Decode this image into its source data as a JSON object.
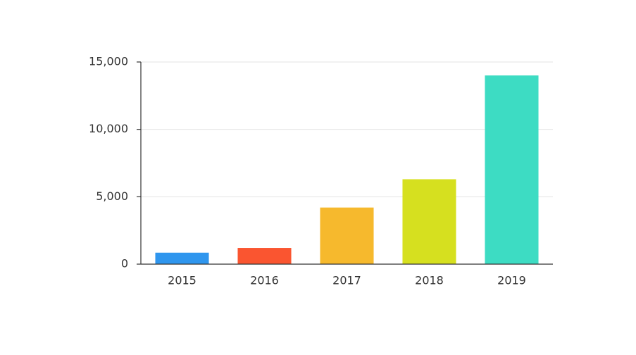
{
  "chart_data": {
    "type": "bar",
    "categories": [
      "2015",
      "2016",
      "2017",
      "2018",
      "2019"
    ],
    "values": [
      850,
      1200,
      4200,
      6300,
      14000
    ],
    "colors": [
      "#2f96ee",
      "#fa5530",
      "#f6b92d",
      "#d6e01f",
      "#3ddcc3"
    ],
    "ylim": [
      0,
      15000
    ],
    "yticks": [
      0,
      {
        "value": 5000,
        "label": "5,000"
      },
      {
        "value": 10000,
        "label": "10,000"
      },
      {
        "value": 15000,
        "label": "15,000"
      }
    ],
    "grid": true
  }
}
